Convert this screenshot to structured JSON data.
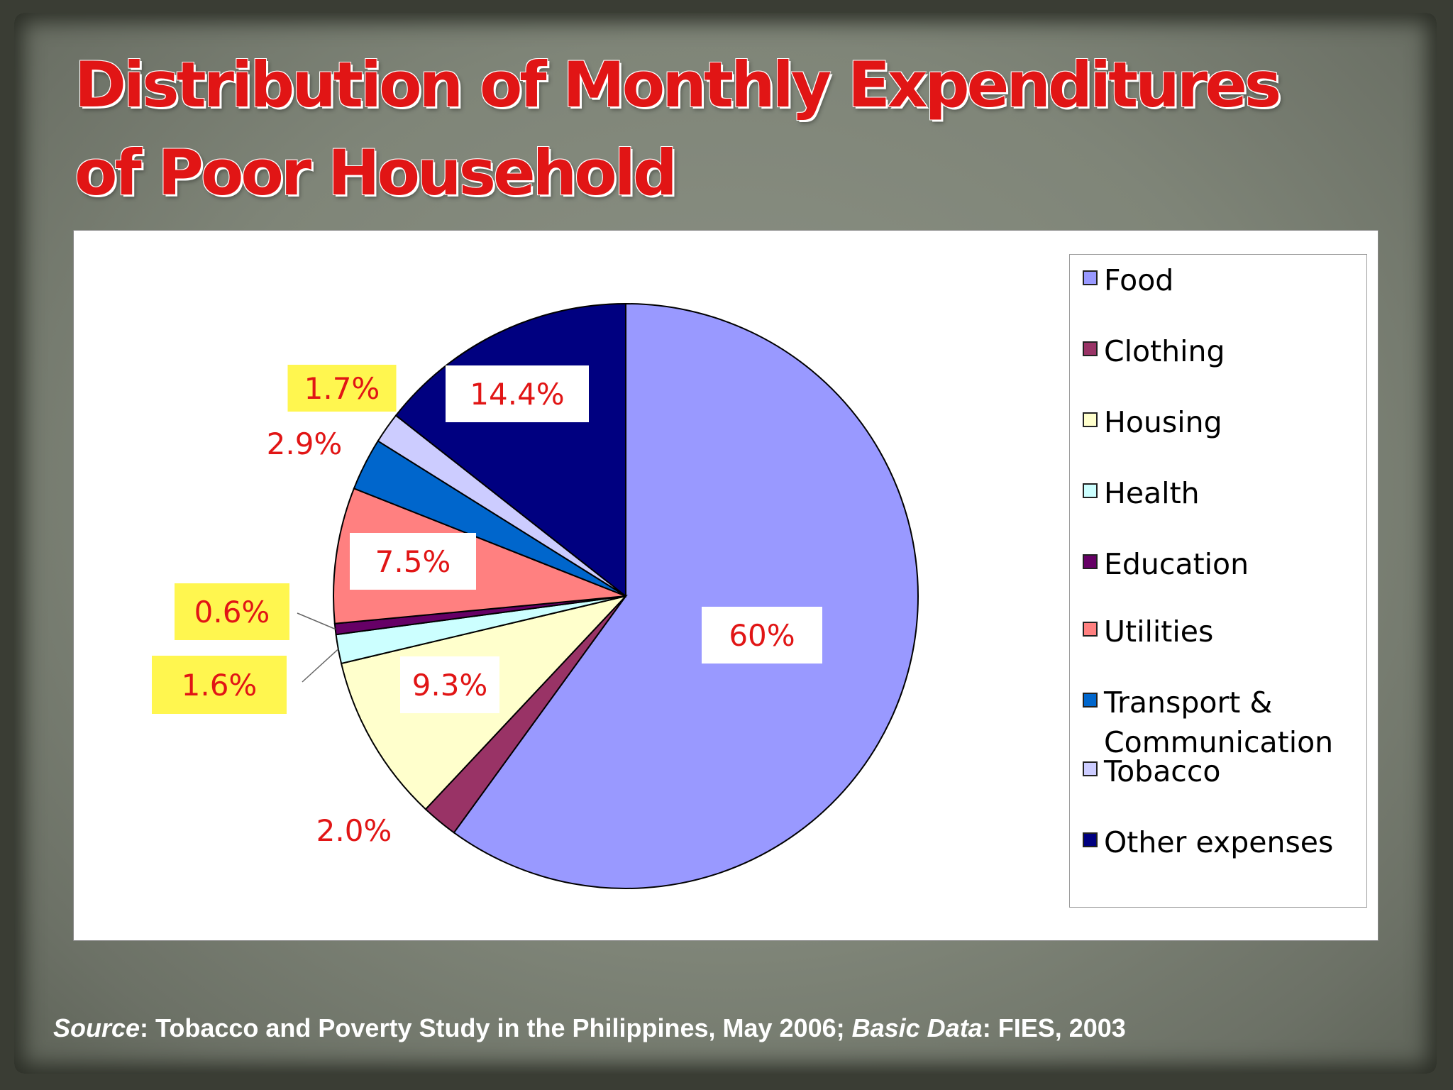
{
  "title_line1": "Distribution of Monthly Expenditures",
  "title_line2": "of Poor Household",
  "source": {
    "label1": "Source",
    "text1": ": Tobacco and Poverty Study in the Philippines, May 2006; ",
    "label2": "Basic Data",
    "text2": ": FIES, 2003"
  },
  "colors": {
    "title": "#e11515",
    "label_text": "#e11515",
    "label_highlight": "#fff64f"
  },
  "chart_data": {
    "type": "pie",
    "categories": [
      "Food",
      "Clothing",
      "Housing",
      "Health",
      "Education",
      "Utilities",
      "Transport & Communication",
      "Tobacco",
      "Other expenses"
    ],
    "legend_lines": [
      [
        "Food"
      ],
      [
        "Clothing"
      ],
      [
        "Housing"
      ],
      [
        "Health"
      ],
      [
        "Education"
      ],
      [
        "Utilities"
      ],
      [
        "Transport &",
        "Communication"
      ],
      [
        "Tobacco"
      ],
      [
        "Other expenses"
      ]
    ],
    "values": [
      60,
      2.0,
      9.3,
      1.6,
      0.6,
      7.5,
      2.9,
      1.7,
      14.4
    ],
    "data_labels": [
      "60%",
      "2.0%",
      "9.3%",
      "1.6%",
      "0.6%",
      "7.5%",
      "2.9%",
      "1.7%",
      "14.4%"
    ],
    "label_styles": [
      "boxed",
      "plain",
      "boxed",
      "highlight",
      "highlight",
      "boxed",
      "plain",
      "highlight",
      "boxed"
    ],
    "colors": [
      "#9999ff",
      "#993366",
      "#ffffcc",
      "#ccffff",
      "#660066",
      "#ff8080",
      "#0066cc",
      "#ccccff",
      "#000080"
    ],
    "legend_position": "right"
  }
}
